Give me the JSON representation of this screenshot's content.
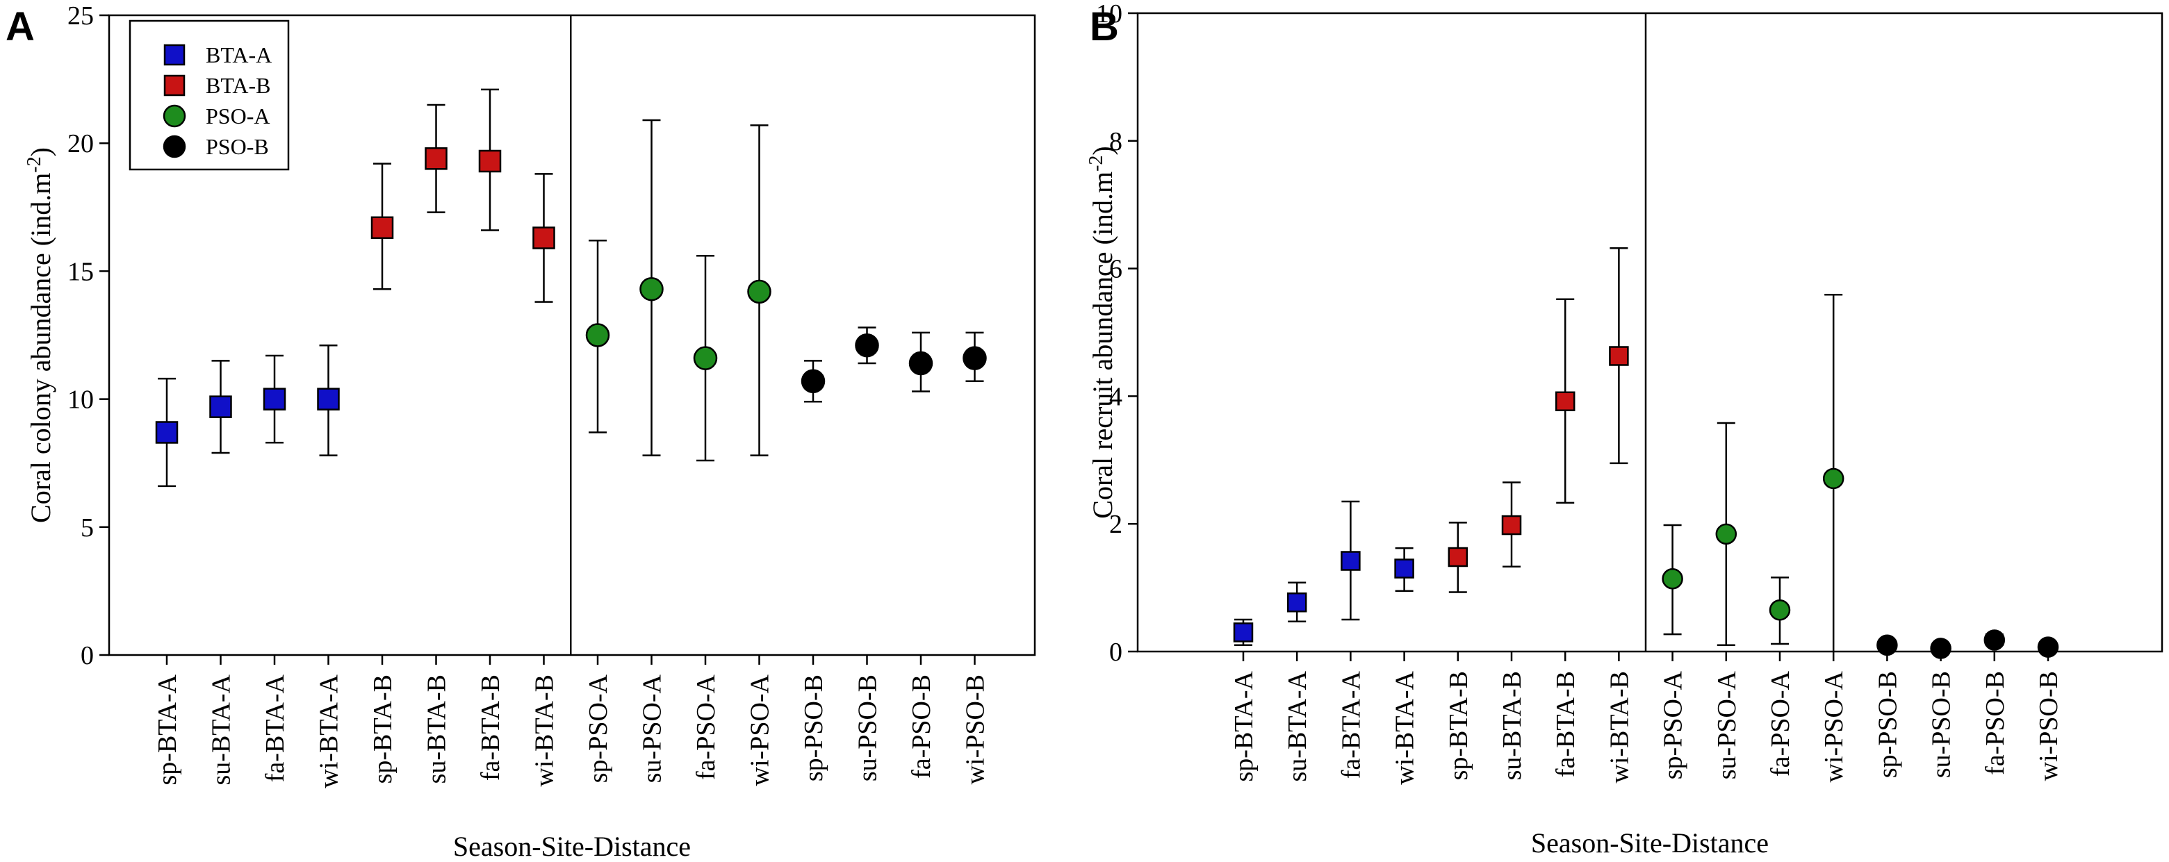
{
  "chart_data": [
    {
      "type": "scatter",
      "panel_label": "A",
      "xlabel": "Season-Site-Distance",
      "ylabel": "Coral colony abundance (ind.m",
      "ylabel_sup": "-2",
      "ylabel_tail": ")",
      "ylim": [
        0,
        25
      ],
      "yticks": [
        "0",
        "5",
        "10",
        "15",
        "20",
        "25"
      ],
      "ytick_values": [
        0,
        5,
        10,
        15,
        20,
        25
      ],
      "categories": [
        "sp-BTA-A",
        "su-BTA-A",
        "fa-BTA-A",
        "wi-BTA-A",
        "sp-BTA-B",
        "su-BTA-B",
        "fa-BTA-B",
        "wi-BTA-B",
        "sp-PSO-A",
        "su-PSO-A",
        "fa-PSO-A",
        "wi-PSO-A",
        "sp-PSO-B",
        "su-PSO-B",
        "fa-PSO-B",
        "wi-PSO-B"
      ],
      "divider_after_index": 7,
      "series": [
        {
          "name": "BTA-A",
          "marker": "square",
          "color": "#1010c8",
          "indices": [
            0,
            1,
            2,
            3
          ],
          "values": [
            8.7,
            9.7,
            10.0,
            10.0
          ],
          "lower": [
            6.6,
            7.9,
            8.3,
            7.8
          ],
          "upper": [
            10.8,
            11.5,
            11.7,
            12.1
          ]
        },
        {
          "name": "BTA-B",
          "marker": "square",
          "color": "#c81414",
          "indices": [
            4,
            5,
            6,
            7
          ],
          "values": [
            16.7,
            19.4,
            19.3,
            16.3
          ],
          "lower": [
            14.3,
            17.3,
            16.6,
            13.8
          ],
          "upper": [
            19.2,
            21.5,
            22.1,
            18.8
          ]
        },
        {
          "name": "PSO-A",
          "marker": "circle",
          "color": "#1e8c1e",
          "indices": [
            8,
            9,
            10,
            11
          ],
          "values": [
            12.5,
            14.3,
            11.6,
            14.2
          ],
          "lower": [
            8.7,
            7.8,
            7.6,
            7.8
          ],
          "upper": [
            16.2,
            20.9,
            15.6,
            20.7
          ]
        },
        {
          "name": "PSO-B",
          "marker": "circle",
          "color": "#000000",
          "indices": [
            12,
            13,
            14,
            15
          ],
          "values": [
            10.7,
            12.1,
            11.4,
            11.6
          ],
          "lower": [
            9.9,
            11.4,
            10.3,
            10.7
          ],
          "upper": [
            11.5,
            12.8,
            12.6,
            12.6
          ]
        }
      ],
      "legend": {
        "position": "top-left",
        "entries": [
          "BTA-A",
          "BTA-B",
          "PSO-A",
          "PSO-B"
        ]
      }
    },
    {
      "type": "scatter",
      "panel_label": "B",
      "xlabel": "Season-Site-Distance",
      "ylabel": "Coral recruit abundance (ind.m",
      "ylabel_sup": "-2",
      "ylabel_tail": ")",
      "ylim": [
        0,
        10
      ],
      "yticks": [
        "0",
        "2",
        "4",
        "6",
        "8",
        "10"
      ],
      "ytick_values": [
        0,
        2,
        4,
        6,
        8,
        10
      ],
      "categories": [
        "sp-BTA-A",
        "su-BTA-A",
        "fa-BTA-A",
        "wi-BTA-A",
        "sp-BTA-B",
        "su-BTA-B",
        "fa-BTA-B",
        "wi-BTA-B",
        "sp-PSO-A",
        "su-PSO-A",
        "fa-PSO-A",
        "wi-PSO-A",
        "sp-PSO-B",
        "su-PSO-B",
        "fa-PSO-B",
        "wi-PSO-B"
      ],
      "divider_after_index": 7,
      "series": [
        {
          "name": "BTA-A",
          "marker": "square",
          "color": "#1010c8",
          "indices": [
            0,
            1,
            2,
            3
          ],
          "values": [
            0.3,
            0.77,
            1.42,
            1.3
          ],
          "lower": [
            0.1,
            0.47,
            0.5,
            0.95
          ],
          "upper": [
            0.5,
            1.08,
            2.35,
            1.62
          ]
        },
        {
          "name": "BTA-B",
          "marker": "square",
          "color": "#c81414",
          "indices": [
            4,
            5,
            6,
            7
          ],
          "values": [
            1.48,
            1.98,
            3.92,
            4.63
          ],
          "lower": [
            0.93,
            1.33,
            2.33,
            2.95
          ],
          "upper": [
            2.02,
            2.65,
            5.52,
            6.32
          ]
        },
        {
          "name": "PSO-A",
          "marker": "circle",
          "color": "#1e8c1e",
          "indices": [
            8,
            9,
            10,
            11
          ],
          "values": [
            1.14,
            1.84,
            0.65,
            2.71
          ],
          "lower": [
            0.27,
            0.1,
            0.12,
            0.0
          ],
          "upper": [
            1.98,
            3.58,
            1.16,
            5.59
          ]
        },
        {
          "name": "PSO-B",
          "marker": "circle",
          "color": "#000000",
          "indices": [
            12,
            13,
            14,
            15
          ],
          "values": [
            0.1,
            0.05,
            0.18,
            0.07
          ],
          "lower": [
            0.07,
            0.03,
            0.1,
            0.04
          ],
          "upper": [
            0.13,
            0.07,
            0.27,
            0.1
          ]
        }
      ]
    }
  ]
}
